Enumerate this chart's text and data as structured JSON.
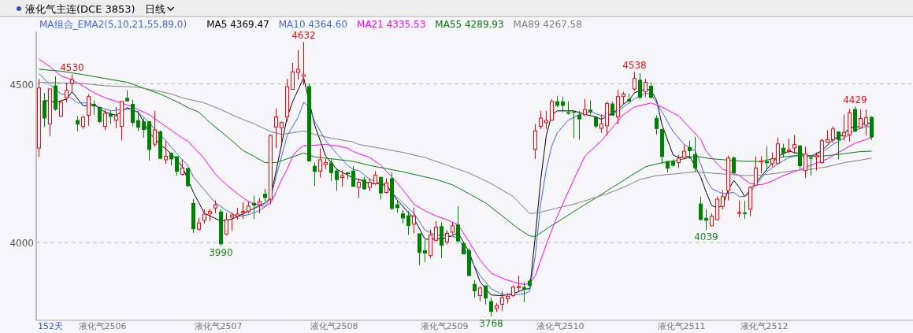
{
  "chart_data": {
    "type": "candlestick",
    "title": "液化气主连(DCE 3853)",
    "subtitle": "日线",
    "legend_title": "MA组合_EMA2(5,10,21,55,89,0)",
    "legend": "top left",
    "grid": "y",
    "ylim": [
      3755,
      4665
    ],
    "yticks": [
      4000,
      4500
    ],
    "annotations": [
      "152天",
      "液化气2506",
      "液化气2507",
      "液化气2508",
      "液化气2509",
      "液化气2510",
      "液化气2511",
      "液化气2512",
      "4530",
      "4632",
      "3990",
      "3768",
      "4538",
      "4039",
      "4429"
    ],
    "categories": [
      null,
      null,
      null,
      null,
      null,
      null,
      null,
      null,
      null,
      null,
      null,
      null,
      null,
      null,
      null,
      null,
      null,
      null,
      null,
      null,
      null,
      null,
      null,
      null,
      null,
      null,
      null,
      null,
      null,
      null,
      null,
      null,
      null,
      null,
      null,
      null,
      null,
      null,
      null,
      null,
      null,
      null,
      null,
      null,
      null,
      null,
      null,
      null,
      null,
      null,
      null,
      null,
      null,
      null,
      null,
      null,
      null,
      null,
      null,
      null,
      null,
      null,
      null,
      null,
      null,
      null,
      null,
      null,
      null,
      null,
      null,
      null,
      null,
      null,
      null,
      null,
      null,
      null,
      null,
      null,
      null,
      null,
      null,
      null,
      null,
      null,
      null,
      null,
      null,
      null,
      null,
      null,
      null,
      null,
      null,
      null,
      null,
      null,
      null,
      null,
      null,
      null,
      null,
      null,
      null,
      null,
      null,
      null,
      null,
      null,
      null,
      null,
      null,
      null,
      null,
      null,
      null,
      null,
      null,
      null,
      null,
      null,
      null,
      null,
      null,
      null,
      null,
      null,
      null,
      null,
      null,
      null,
      null,
      null,
      null,
      null,
      null,
      null,
      null,
      null,
      null,
      null,
      null,
      null,
      null,
      null,
      null,
      null,
      null,
      null,
      null,
      null
    ],
    "ohlc": [
      [
        4298,
        4515,
        4270,
        4487
      ],
      [
        4448,
        4471,
        4364,
        4391
      ],
      [
        4374,
        4484,
        4335,
        4484
      ],
      [
        4495,
        4524,
        4415,
        4419
      ],
      [
        4398,
        4448,
        4398,
        4442
      ],
      [
        4456,
        4502,
        4442,
        4480
      ],
      [
        4502,
        4530,
        4475,
        4513
      ],
      [
        4386,
        4399,
        4351,
        4372
      ],
      [
        4366,
        4399,
        4359,
        4395
      ],
      [
        4401,
        4468,
        4368,
        4460
      ],
      [
        4437,
        4448,
        4403,
        4429
      ],
      [
        4427,
        4427,
        4377,
        4380
      ],
      [
        4366,
        4419,
        4355,
        4407
      ],
      [
        4406,
        4415,
        4373,
        4396
      ],
      [
        4386,
        4427,
        4360,
        4400
      ],
      [
        4366,
        4445,
        4321,
        4445
      ],
      [
        4456,
        4480,
        4444,
        4445
      ],
      [
        4437,
        4450,
        4366,
        4377
      ],
      [
        4386,
        4415,
        4351,
        4362
      ],
      [
        4382,
        4392,
        4331,
        4355
      ],
      [
        4382,
        4382,
        4258,
        4292
      ],
      [
        4310,
        4415,
        4301,
        4355
      ],
      [
        4350,
        4354,
        4262,
        4264
      ],
      [
        4261,
        4321,
        4248,
        4272
      ],
      [
        4283,
        4283,
        4243,
        4262
      ],
      [
        4272,
        4272,
        4211,
        4223
      ],
      [
        4215,
        4262,
        4211,
        4235
      ],
      [
        4235,
        4235,
        4174,
        4178
      ],
      [
        4125,
        4137,
        4031,
        4042
      ],
      [
        4042,
        4078,
        4038,
        4062
      ],
      [
        4070,
        4105,
        4060,
        4090
      ],
      [
        4092,
        4106,
        4068,
        4098
      ],
      [
        4109,
        4133,
        4092,
        4119
      ],
      [
        4098,
        4105,
        3990,
        3995
      ],
      [
        4027,
        4094,
        4023,
        4072
      ],
      [
        4080,
        4096,
        4037,
        4087
      ],
      [
        4084,
        4110,
        4072,
        4090
      ],
      [
        4095,
        4127,
        4074,
        4098
      ],
      [
        4099,
        4129,
        4092,
        4115
      ],
      [
        4125,
        4148,
        4074,
        4117
      ],
      [
        4119,
        4141,
        4092,
        4129
      ],
      [
        4154,
        4170,
        4129,
        4141
      ],
      [
        4137,
        4341,
        4121,
        4337
      ],
      [
        4364,
        4423,
        4297,
        4396
      ],
      [
        4362,
        4382,
        4313,
        4378
      ],
      [
        4396,
        4515,
        4382,
        4491
      ],
      [
        4483,
        4566,
        4483,
        4538
      ],
      [
        4536,
        4607,
        4513,
        4546
      ],
      [
        4524,
        4632,
        4497,
        4529
      ],
      [
        4493,
        4501,
        4256,
        4256
      ],
      [
        4242,
        4252,
        4178,
        4223
      ],
      [
        4225,
        4297,
        4205,
        4261
      ],
      [
        4246,
        4264,
        4231,
        4252
      ],
      [
        4252,
        4264,
        4194,
        4219
      ],
      [
        4227,
        4231,
        4163,
        4197
      ],
      [
        4205,
        4227,
        4176,
        4211
      ],
      [
        4221,
        4223,
        4199,
        4216
      ],
      [
        4227,
        4241,
        4176,
        4176
      ],
      [
        4174,
        4200,
        4141,
        4190
      ],
      [
        4199,
        4207,
        4166,
        4168
      ],
      [
        4174,
        4203,
        4162,
        4190
      ],
      [
        4186,
        4225,
        4181,
        4212
      ],
      [
        4207,
        4207,
        4136,
        4155
      ],
      [
        4158,
        4203,
        4155,
        4188
      ],
      [
        4203,
        4221,
        4102,
        4107
      ],
      [
        4121,
        4132,
        4094,
        4109
      ],
      [
        4092,
        4102,
        4061,
        4076
      ],
      [
        4086,
        4100,
        4025,
        4052
      ],
      [
        4058,
        4110,
        4029,
        4084
      ],
      [
        4029,
        4029,
        3929,
        3968
      ],
      [
        3976,
        4008,
        3939,
        3966
      ],
      [
        3959,
        4041,
        3952,
        4024
      ],
      [
        4007,
        4068,
        4004,
        4049
      ],
      [
        4052,
        4064,
        3951,
        3990
      ],
      [
        4002,
        4039,
        3994,
        4029
      ],
      [
        4033,
        4065,
        4027,
        4053
      ],
      [
        4057,
        4115,
        3998,
        4004
      ],
      [
        3998,
        3998,
        3963,
        3963
      ],
      [
        3976,
        3982,
        3895,
        3895
      ],
      [
        3870,
        3882,
        3827,
        3847
      ],
      [
        3833,
        3862,
        3815,
        3857
      ],
      [
        3865,
        3865,
        3805,
        3824
      ],
      [
        3816,
        3827,
        3768,
        3782
      ],
      [
        3792,
        3810,
        3782,
        3802
      ],
      [
        3806,
        3847,
        3784,
        3827
      ],
      [
        3823,
        3841,
        3808,
        3831
      ],
      [
        3833,
        3865,
        3829,
        3860
      ],
      [
        3858,
        3896,
        3847,
        3862
      ],
      [
        3860,
        3876,
        3813,
        3853
      ],
      [
        3880,
        3884,
        3855,
        3864
      ],
      [
        4294,
        4374,
        4264,
        4352
      ],
      [
        4366,
        4415,
        4358,
        4392
      ],
      [
        4378,
        4415,
        4358,
        4385
      ],
      [
        4386,
        4452,
        4386,
        4445
      ],
      [
        4445,
        4462,
        4427,
        4431
      ],
      [
        4445,
        4460,
        4411,
        4431
      ],
      [
        4411,
        4445,
        4403,
        4406
      ],
      [
        4413,
        4415,
        4329,
        4409
      ],
      [
        4403,
        4415,
        4324,
        4388
      ],
      [
        4403,
        4453,
        4399,
        4419
      ],
      [
        4419,
        4448,
        4403,
        4411
      ],
      [
        4396,
        4399,
        4360,
        4366
      ],
      [
        4360,
        4404,
        4346,
        4374
      ],
      [
        4368,
        4444,
        4337,
        4438
      ],
      [
        4438,
        4444,
        4399,
        4400
      ],
      [
        4396,
        4482,
        4373,
        4460
      ],
      [
        4460,
        4475,
        4436,
        4468
      ],
      [
        4452,
        4470,
        4440,
        4445
      ],
      [
        4484,
        4538,
        4478,
        4517
      ],
      [
        4513,
        4534,
        4453,
        4456
      ],
      [
        4476,
        4516,
        4458,
        4505
      ],
      [
        4494,
        4505,
        4454,
        4456
      ],
      [
        4393,
        4401,
        4340,
        4358
      ],
      [
        4358,
        4358,
        4248,
        4270
      ],
      [
        4257,
        4257,
        4221,
        4233
      ],
      [
        4256,
        4262,
        4239,
        4242
      ],
      [
        4252,
        4276,
        4235,
        4266
      ],
      [
        4268,
        4309,
        4262,
        4288
      ],
      [
        4301,
        4321,
        4264,
        4288
      ],
      [
        4279,
        4333,
        4223,
        4234
      ],
      [
        4123,
        4145,
        4069,
        4072
      ],
      [
        4078,
        4105,
        4039,
        4069
      ],
      [
        4053,
        4092,
        4051,
        4083
      ],
      [
        4072,
        4145,
        4072,
        4137
      ],
      [
        4114,
        4166,
        4105,
        4145
      ],
      [
        4164,
        4274,
        4133,
        4266
      ],
      [
        4268,
        4271,
        4217,
        4219
      ],
      [
        4092,
        4133,
        4080,
        4095
      ],
      [
        4095,
        4132,
        4074,
        4090
      ],
      [
        4106,
        4178,
        4084,
        4174
      ],
      [
        4181,
        4272,
        4178,
        4235
      ],
      [
        4254,
        4272,
        4219,
        4257
      ],
      [
        4257,
        4303,
        4227,
        4250
      ],
      [
        4249,
        4284,
        4238,
        4264
      ],
      [
        4249,
        4331,
        4249,
        4311
      ],
      [
        4299,
        4311,
        4268,
        4280
      ],
      [
        4288,
        4328,
        4280,
        4292
      ],
      [
        4298,
        4339,
        4280,
        4309
      ],
      [
        4306,
        4306,
        4233,
        4241
      ],
      [
        4227,
        4303,
        4203,
        4279
      ],
      [
        4268,
        4276,
        4211,
        4264
      ],
      [
        4270,
        4284,
        4227,
        4274
      ],
      [
        4252,
        4328,
        4248,
        4321
      ],
      [
        4317,
        4354,
        4314,
        4324
      ],
      [
        4324,
        4366,
        4313,
        4358
      ],
      [
        4350,
        4350,
        4262,
        4323
      ],
      [
        4336,
        4403,
        4321,
        4347
      ],
      [
        4339,
        4421,
        4317,
        4409
      ],
      [
        4421,
        4429,
        4348,
        4350
      ],
      [
        4362,
        4421,
        4358,
        4391
      ],
      [
        4370,
        4419,
        4337,
        4393
      ],
      [
        4396,
        4399,
        4323,
        4331
      ]
    ],
    "colors": [
      "#ff0000",
      "#008000",
      "#ff0000",
      "#008000",
      "#ff0000",
      "#ff0000",
      "#ff0000",
      "#008000",
      "#ff0000",
      "#ff0000",
      "#008000",
      "#008000",
      "#ff0000",
      "#008000",
      "#ff0000",
      "#ff0000",
      "#008000",
      "#008000",
      "#008000",
      "#008000",
      "#008000",
      "#ff0000",
      "#008000",
      "#ff0000",
      "#008000",
      "#008000",
      "#ff0000",
      "#008000",
      "#008000",
      "#ff0000",
      "#ff0000",
      "#ff0000",
      "#ff0000",
      "#008000",
      "#ff0000",
      "#ff0000",
      "#ff0000",
      "#ff0000",
      "#ff0000",
      "#008000",
      "#ff0000",
      "#008000",
      "#ff0000",
      "#ff0000",
      "#ff0000",
      "#ff0000",
      "#ff0000",
      "#ff0000",
      "#ff0000",
      "#008000",
      "#008000",
      "#ff0000",
      "#ff0000",
      "#008000",
      "#008000",
      "#ff0000",
      "#008000",
      "#008000",
      "#ff0000",
      "#008000",
      "#ff0000",
      "#ff0000",
      "#008000",
      "#ff0000",
      "#008000",
      "#008000",
      "#008000",
      "#008000",
      "#ff0000",
      "#008000",
      "#008000",
      "#ff0000",
      "#ff0000",
      "#008000",
      "#ff0000",
      "#ff0000",
      "#008000",
      "#008000",
      "#008000",
      "#008000",
      "#ff0000",
      "#008000",
      "#008000",
      "#ff0000",
      "#ff0000",
      "#ff0000",
      "#ff0000",
      "#ff0000",
      "#008000",
      "#008000",
      "#ff0000",
      "#ff0000",
      "#ff0000",
      "#ff0000",
      "#008000",
      "#008000",
      "#008000",
      "#008000",
      "#008000",
      "#ff0000",
      "#008000",
      "#008000",
      "#ff0000",
      "#ff0000",
      "#008000",
      "#ff0000",
      "#ff0000",
      "#008000",
      "#ff0000",
      "#008000",
      "#ff0000",
      "#008000",
      "#008000",
      "#008000",
      "#008000",
      "#008000",
      "#ff0000",
      "#ff0000",
      "#008000",
      "#008000",
      "#008000",
      "#008000",
      "#ff0000",
      "#ff0000",
      "#ff0000",
      "#ff0000",
      "#008000",
      "#ff0000",
      "#008000",
      "#ff0000",
      "#ff0000",
      "#ff0000",
      "#008000",
      "#ff0000",
      "#ff0000",
      "#008000",
      "#ff0000",
      "#ff0000",
      "#008000",
      "#ff0000",
      "#008000",
      "#ff0000",
      "#ff0000",
      "#ff0000",
      "#ff0000",
      "#008000",
      "#ff0000",
      "#ff0000",
      "#008000",
      "#ff0000",
      "#ff0000",
      "#008000"
    ],
    "series": [
      {
        "type": "line",
        "name": "MA5 4369.47",
        "color": "#000000",
        "values": [
          null,
          4448,
          null,
          4442,
          null,
          4452,
          4475,
          null,
          4431,
          null,
          4434,
          null,
          4411,
          null,
          4401,
          null,
          4425,
          null,
          4411,
          null,
          4346,
          null,
          4309,
          null,
          4280,
          null,
          4239,
          null,
          4158,
          null,
          4092,
          null,
          null,
          4068,
          null,
          4074,
          null,
          null,
          4099,
          null,
          null,
          4125,
          4141,
          null,
          null,
          4395,
          4444,
          null,
          4519,
          null,
          4370,
          4321,
          4272,
          null,
          4231,
          null,
          null,
          4203,
          4199,
          null,
          4186,
          null,
          4186,
          4182,
          null,
          4133,
          null,
          null,
          4076,
          null,
          4011,
          null,
          4011,
          null,
          4015,
          null,
          4031,
          null,
          3970,
          null,
          3876,
          null,
          3835,
          null,
          3833,
          null,
          3839,
          null,
          3853,
          3855,
          4020,
          4200,
          4338,
          4403,
          4415,
          null,
          null,
          4415,
          null,
          4404,
          null,
          4396,
          4388,
          4399,
          null,
          4419,
          4436,
          4448,
          4472,
          null,
          4484,
          4480,
          4448,
          4370,
          null,
          4276,
          4268,
          null,
          4272,
          null,
          4207,
          4158,
          4117,
          4109,
          4117,
          4166,
          4196,
          4174,
          4145,
          null,
          null,
          null,
          4231,
          null,
          4272,
          null,
          4288,
          null,
          4280,
          null,
          4272,
          null,
          4290,
          null,
          4325,
          null,
          4342,
          4362,
          4364,
          4366,
          4382,
          4370
        ]
      },
      {
        "type": "line",
        "name": "MA10 4364.60",
        "color": "#3d6be0",
        "values": [
          4533,
          null,
          4497,
          null,
          4468,
          4466,
          null,
          4440,
          null,
          4440,
          null,
          4427,
          null,
          4415,
          null,
          4419,
          null,
          4421,
          null,
          4395,
          null,
          4358,
          null,
          4321,
          null,
          4280,
          null,
          4243,
          4207,
          null,
          4166,
          null,
          4125,
          null,
          4101,
          null,
          4082,
          null,
          4088,
          null,
          4101,
          4113,
          4141,
          4207,
          4272,
          4337,
          null,
          4395,
          4442,
          4427,
          4382,
          null,
          4321,
          null,
          4280,
          null,
          4243,
          4230,
          4227,
          null,
          4199,
          null,
          4186,
          null,
          4158,
          null,
          4125,
          null,
          4092,
          null,
          4039,
          null,
          4023,
          null,
          4024,
          null,
          4015,
          null,
          null,
          null,
          3896,
          null,
          3855,
          null,
          3837,
          null,
          3835,
          null,
          3839,
          3847,
          3960,
          4125,
          4231,
          4305,
          4346,
          null,
          4386,
          null,
          4403,
          null,
          4413,
          null,
          4399,
          null,
          4403,
          null,
          4427,
          null,
          4453,
          null,
          4470,
          4468,
          null,
          4411,
          null,
          4350,
          null,
          4309,
          null,
          4289,
          4248,
          4199,
          4170,
          null,
          4154,
          null,
          4158,
          4145,
          4145,
          4158,
          4182,
          null,
          4223,
          null,
          4248,
          null,
          4268,
          null,
          4276,
          null,
          4274,
          null,
          4284,
          null,
          4309,
          null,
          4329,
          null,
          4354,
          null,
          4366,
          4364
        ]
      },
      {
        "type": "line",
        "name": "MA21 4335.53",
        "color": "#ff00ff",
        "values": [
          4578,
          null,
          4554,
          null,
          4525,
          null,
          4513,
          null,
          4493,
          null,
          4472,
          null,
          4456,
          null,
          4445,
          null,
          4434,
          null,
          4419,
          null,
          4403,
          null,
          4378,
          null,
          4354,
          null,
          4329,
          4320,
          4301,
          null,
          4264,
          null,
          4215,
          null,
          4182,
          null,
          4154,
          null,
          4129,
          null,
          4117,
          4113,
          4125,
          4158,
          4199,
          4231,
          4272,
          4293,
          4305,
          null,
          4307,
          null,
          4309,
          null,
          4305,
          null,
          4297,
          4287,
          4280,
          null,
          4268,
          null,
          4243,
          null,
          4207,
          null,
          4166,
          null,
          4121,
          null,
          4100,
          null,
          4084,
          null,
          4072,
          null,
          4056,
          null,
          4002,
          null,
          3945,
          null,
          3904,
          null,
          3888,
          null,
          3876,
          null,
          3868,
          3872,
          3895,
          null,
          3994,
          null,
          4084,
          null,
          null,
          4199,
          null,
          4272,
          null,
          null,
          4321,
          null,
          4362,
          null,
          4403,
          null,
          4427,
          null,
          null,
          4440,
          null,
          4427,
          null,
          null,
          4399,
          null,
          4362,
          null,
          4325,
          4288,
          null,
          4248,
          4231,
          null,
          null,
          4211,
          null,
          4186,
          null,
          4182,
          null,
          4194,
          null,
          4211,
          null,
          null,
          4230,
          null,
          4244,
          null,
          null,
          4264,
          null,
          4284,
          null,
          null,
          4313,
          null,
          null,
          4331
        ]
      },
      {
        "type": "line",
        "name": "MA55 4289.93",
        "color": "#008000",
        "values": [
          4546,
          null,
          null,
          null,
          4540,
          null,
          null,
          null,
          4529,
          null,
          null,
          null,
          4517,
          null,
          null,
          null,
          4505,
          null,
          4493,
          null,
          4480,
          null,
          4468,
          null,
          4452,
          null,
          4435,
          4425,
          null,
          4411,
          null,
          4378,
          null,
          4350,
          null,
          4321,
          null,
          4290,
          null,
          4272,
          null,
          4252,
          null,
          4252,
          null,
          4264,
          null,
          4276,
          4282,
          null,
          4270,
          null,
          4266,
          null,
          4262,
          null,
          null,
          4256,
          null,
          null,
          4243,
          null,
          null,
          4233,
          null,
          null,
          4223,
          null,
          null,
          4211,
          null,
          null,
          4199,
          null,
          null,
          4182,
          null,
          null,
          4154,
          null,
          null,
          4125,
          null,
          null,
          4084,
          null,
          null,
          4043,
          null,
          4021,
          4019,
          null,
          4043,
          null,
          null,
          4076,
          null,
          null,
          4109,
          null,
          null,
          4141,
          null,
          null,
          4174,
          null,
          null,
          4207,
          null,
          null,
          4239,
          null,
          null,
          4252,
          null,
          null,
          4260,
          null,
          null,
          4272,
          null,
          null,
          4264,
          null,
          null,
          4260,
          null,
          null,
          4256,
          null,
          null,
          4256,
          null,
          null,
          4268,
          null,
          null,
          4274,
          null,
          null,
          4272,
          null,
          null,
          4274,
          null,
          null,
          4280,
          null,
          null,
          4287,
          null,
          4288
        ]
      },
      {
        "type": "line",
        "name": "MA89 4267.58",
        "color": "#808080",
        "values": [
          4505,
          null,
          null,
          null,
          4503,
          null,
          null,
          null,
          4501,
          null,
          null,
          null,
          4494,
          null,
          null,
          null,
          4491,
          null,
          4489,
          null,
          4483,
          null,
          4476,
          null,
          4468,
          null,
          4456,
          4452,
          null,
          null,
          4440,
          null,
          null,
          4419,
          null,
          null,
          4395,
          null,
          null,
          4374,
          null,
          null,
          4350,
          null,
          4341,
          null,
          4346,
          null,
          4352,
          null,
          4341,
          null,
          null,
          4329,
          null,
          null,
          null,
          4317,
          4309,
          null,
          null,
          null,
          4297,
          null,
          null,
          null,
          4284,
          null,
          null,
          null,
          4268,
          null,
          null,
          null,
          4244,
          null,
          null,
          null,
          4219,
          null,
          null,
          null,
          4186,
          null,
          null,
          null,
          4145,
          null,
          null,
          4091,
          null,
          4096,
          null,
          null,
          4109,
          null,
          null,
          4121,
          null,
          null,
          4137,
          null,
          null,
          4154,
          null,
          null,
          4174,
          null,
          null,
          4199,
          null,
          null,
          4211,
          null,
          null,
          4216,
          null,
          null,
          null,
          4223,
          null,
          null,
          4219,
          null,
          null,
          4215,
          null,
          null,
          4211,
          null,
          null,
          4213,
          null,
          null,
          4219,
          null,
          null,
          4227,
          null,
          null,
          4231,
          null,
          null,
          4239,
          null,
          null,
          4252,
          null,
          null,
          4260,
          null,
          4266
        ]
      }
    ]
  }
}
